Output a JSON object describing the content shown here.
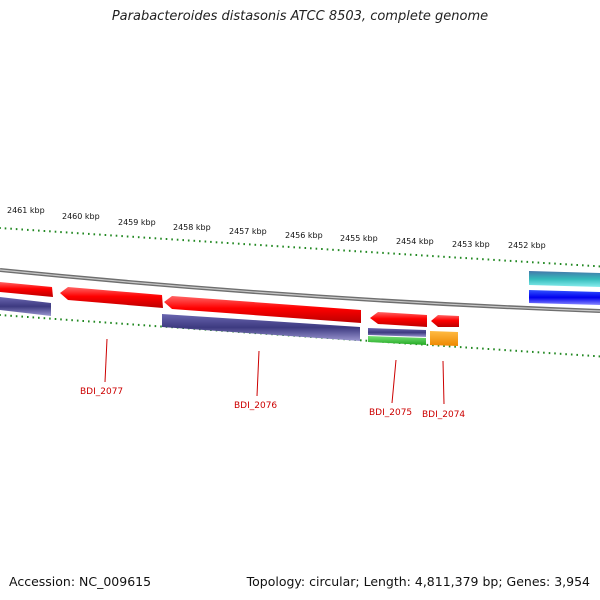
{
  "title": "Parabacteroides distasonis ATCC 8503, complete genome",
  "footer": {
    "accession": "Accession: NC_009615",
    "summary": "Topology: circular; Length: 4,811,379 bp; Genes: 3,954"
  },
  "scale_labels": [
    "2461 kbp",
    "2460 kbp",
    "2459 kbp",
    "2458 kbp",
    "2457 kbp",
    "2456 kbp",
    "2455 kbp",
    "2454 kbp",
    "2453 kbp",
    "2452 kbp"
  ],
  "gene_labels": [
    "BDI_2077",
    "BDI_2076",
    "BDI_2075",
    "BDI_2074"
  ],
  "colors": {
    "cds": "#ee1111",
    "protein_track": "#3d3a80",
    "green_feature": "#33bb33",
    "orange_feature": "#ff9900",
    "blue_feature": "#0000ee",
    "teal_feature": "#44aaaa",
    "ticks": "#228822",
    "backbone": "#888888",
    "gene_label": "#cc0000"
  }
}
